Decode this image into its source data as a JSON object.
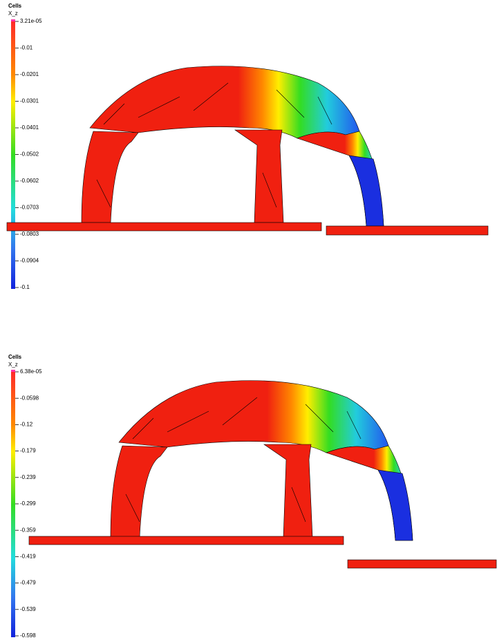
{
  "panels": [
    {
      "title": "Cells",
      "subtitle": "X_z",
      "ticks": [
        "3.21e-05",
        "-0.01",
        "-0.0201",
        "-0.0301",
        "-0.0401",
        "-0.0502",
        "-0.0602",
        "-0.0703",
        "-0.0803",
        "-0.0904",
        "-0.1"
      ]
    },
    {
      "title": "Cells",
      "subtitle": "X_z",
      "ticks": [
        "6.38e-05",
        "-0.0598",
        "-0.12",
        "-0.179",
        "-0.239",
        "-0.299",
        "-0.359",
        "-0.419",
        "-0.479",
        "-0.539",
        "-0.598"
      ]
    }
  ]
}
